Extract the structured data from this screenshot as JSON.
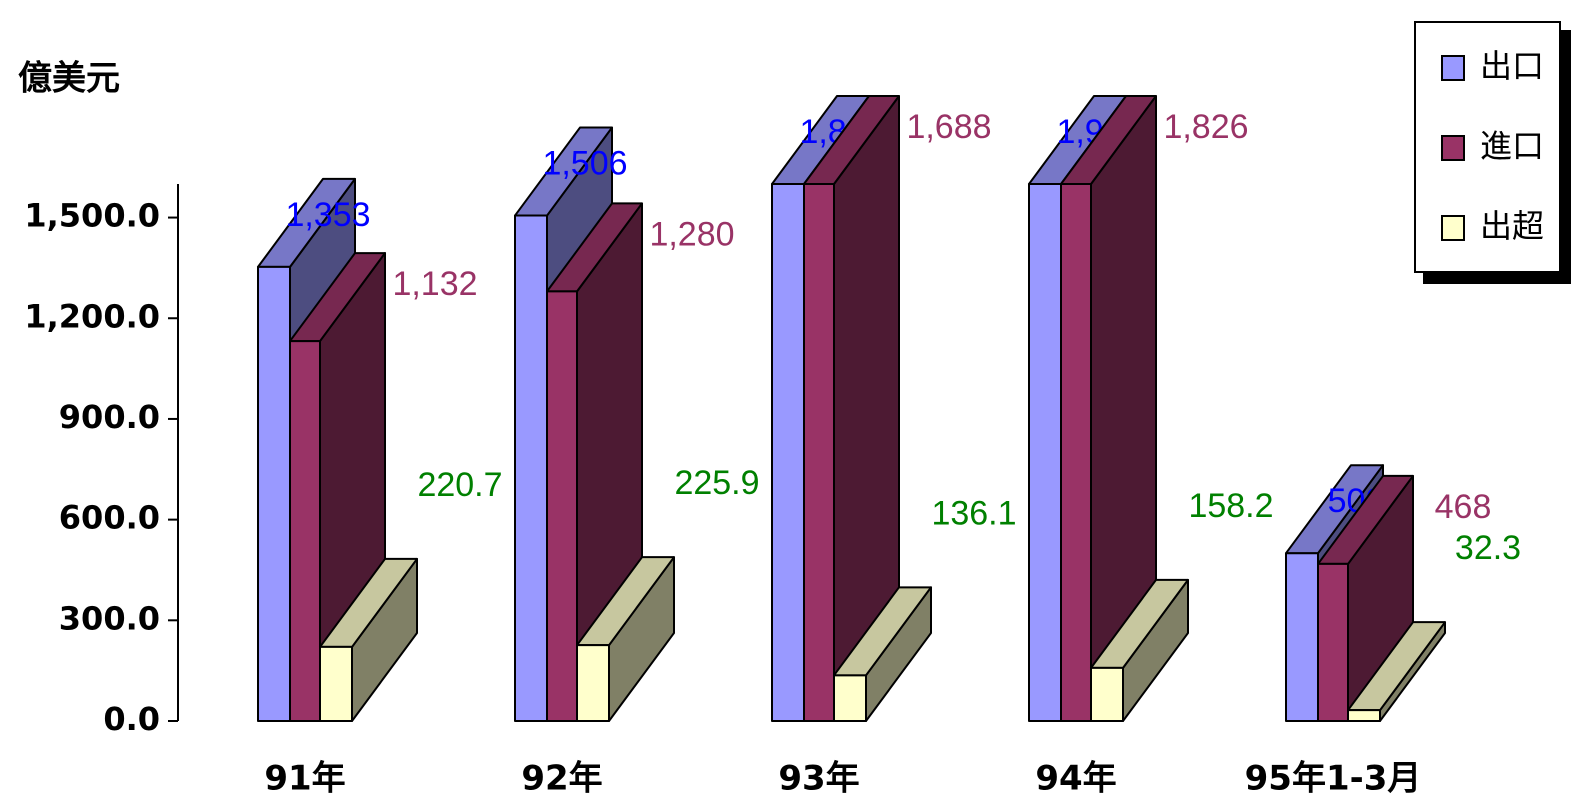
{
  "chart_data": {
    "type": "bar3d",
    "y_unit_label": "億美元",
    "categories": [
      "91年",
      "92年",
      "93年",
      "94年",
      "95年1-3月"
    ],
    "series": [
      {
        "name": "出口",
        "color": "#9999ff",
        "label_color": "#0000ff",
        "values": [
          1353,
          1506,
          1824,
          1984,
          500
        ],
        "value_labels": [
          "1,353",
          "1,506",
          "1,824",
          "1,984",
          "500"
        ]
      },
      {
        "name": "進口",
        "color": "#993366",
        "label_color": "#993366",
        "values": [
          1132,
          1280,
          1688,
          1826,
          468
        ],
        "value_labels": [
          "1,132",
          "1,280",
          "1,688",
          "1,826",
          "468"
        ]
      },
      {
        "name": "出超",
        "color": "#ffffcc",
        "label_color": "#008000",
        "values": [
          220.7,
          225.9,
          136.1,
          158.2,
          32.3
        ]
      }
    ],
    "ylim": [
      0,
      1600
    ],
    "yticks": [
      {
        "value": 0,
        "label": "0.0"
      },
      {
        "value": 300,
        "label": "300.0"
      },
      {
        "value": 600,
        "label": "600.0"
      },
      {
        "value": 900,
        "label": "900.0"
      },
      {
        "value": 1200,
        "label": "1,200.0"
      },
      {
        "value": 1500,
        "label": "1,500.0"
      }
    ],
    "legend": "top-right"
  }
}
